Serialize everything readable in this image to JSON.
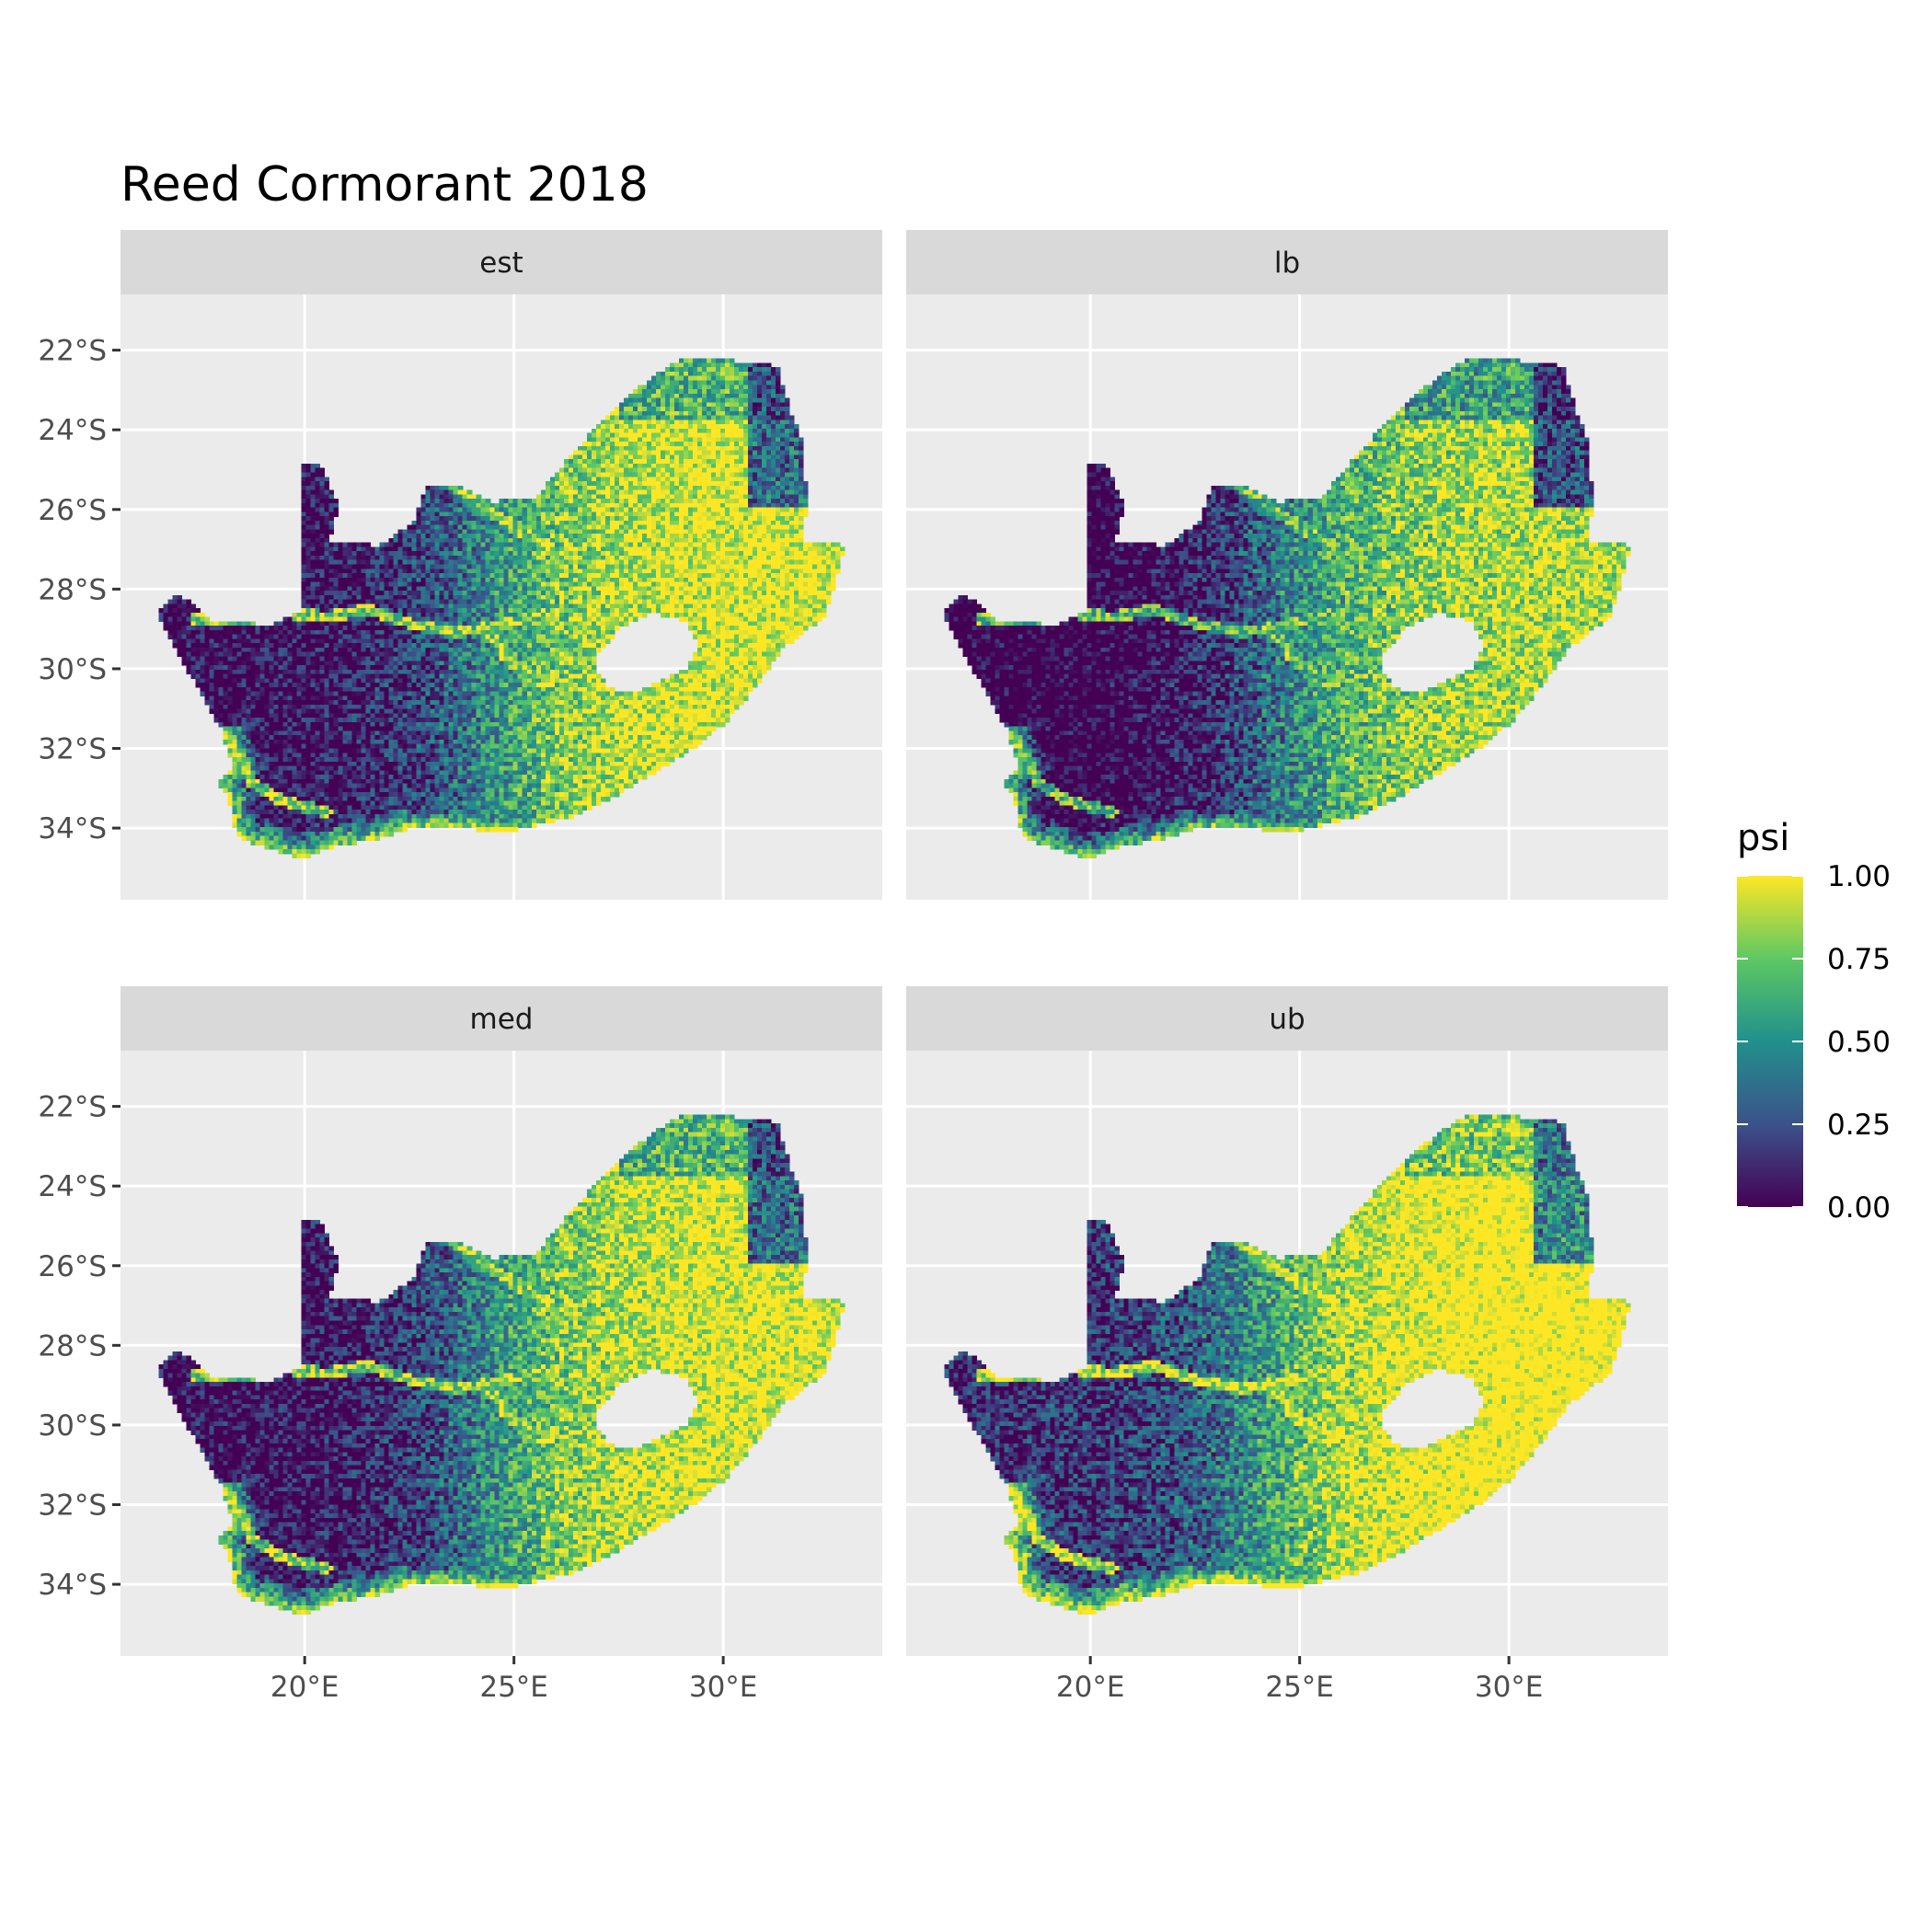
{
  "title": "Reed Cormorant 2018",
  "chart_data": {
    "type": "heatmap",
    "title": "Reed Cormorant 2018",
    "facets": [
      "est",
      "lb",
      "med",
      "ub"
    ],
    "x_ticks": [
      "20°E",
      "25°E",
      "30°E"
    ],
    "y_ticks": [
      "22°S",
      "24°S",
      "26°S",
      "28°S",
      "30°S",
      "32°S",
      "34°S"
    ],
    "x_tick_values": [
      20,
      25,
      30
    ],
    "y_tick_values": [
      -22,
      -24,
      -26,
      -28,
      -30,
      -32,
      -34
    ],
    "xlim": [
      15.6,
      33.8
    ],
    "ylim": [
      -35.8,
      -20.6
    ],
    "grid": true,
    "legend": {
      "title": "psi",
      "position": "right",
      "labels": [
        "1.00",
        "0.75",
        "0.50",
        "0.25",
        "0.00"
      ],
      "values": [
        1.0,
        0.75,
        0.5,
        0.25,
        0.0
      ],
      "range": [
        0,
        1
      ]
    },
    "facet_offsets": {
      "est": 0.0,
      "lb": -0.1,
      "med": 0.0,
      "ub": 0.12
    },
    "region_outline_lonlat": [
      [
        16.45,
        -28.6
      ],
      [
        16.9,
        -28.1
      ],
      [
        17.3,
        -28.3
      ],
      [
        17.8,
        -28.8
      ],
      [
        18.6,
        -28.85
      ],
      [
        19.2,
        -28.9
      ],
      [
        19.9,
        -28.55
      ],
      [
        19.95,
        -24.8
      ],
      [
        20.4,
        -24.9
      ],
      [
        20.8,
        -25.9
      ],
      [
        20.6,
        -26.8
      ],
      [
        21.8,
        -26.9
      ],
      [
        22.6,
        -26.3
      ],
      [
        22.9,
        -25.4
      ],
      [
        23.6,
        -25.4
      ],
      [
        24.5,
        -25.8
      ],
      [
        25.5,
        -25.7
      ],
      [
        26.3,
        -24.7
      ],
      [
        27.0,
        -23.9
      ],
      [
        28.0,
        -22.9
      ],
      [
        29.0,
        -22.2
      ],
      [
        29.8,
        -22.2
      ],
      [
        31.3,
        -22.4
      ],
      [
        31.6,
        -23.5
      ],
      [
        31.9,
        -24.3
      ],
      [
        32.0,
        -25.9
      ],
      [
        31.9,
        -26.8
      ],
      [
        32.9,
        -26.9
      ],
      [
        32.7,
        -27.8
      ],
      [
        32.4,
        -28.7
      ],
      [
        31.4,
        -29.5
      ],
      [
        30.8,
        -30.4
      ],
      [
        30.1,
        -31.3
      ],
      [
        29.4,
        -31.9
      ],
      [
        28.5,
        -32.5
      ],
      [
        27.4,
        -33.2
      ],
      [
        26.4,
        -33.7
      ],
      [
        25.6,
        -33.9
      ],
      [
        24.8,
        -34.1
      ],
      [
        23.6,
        -33.98
      ],
      [
        22.6,
        -33.98
      ],
      [
        21.6,
        -34.3
      ],
      [
        20.5,
        -34.5
      ],
      [
        20.0,
        -34.8
      ],
      [
        19.3,
        -34.55
      ],
      [
        18.5,
        -34.3
      ],
      [
        18.3,
        -33.9
      ],
      [
        18.2,
        -33.3
      ],
      [
        17.9,
        -32.8
      ],
      [
        18.3,
        -32.5
      ],
      [
        18.0,
        -31.5
      ],
      [
        17.4,
        -30.4
      ],
      [
        16.9,
        -29.5
      ]
    ],
    "lesotho_hole_lonlat": [
      [
        27.0,
        -29.6
      ],
      [
        27.6,
        -28.9
      ],
      [
        28.3,
        -28.6
      ],
      [
        29.1,
        -28.8
      ],
      [
        29.4,
        -29.4
      ],
      [
        29.1,
        -30.0
      ],
      [
        28.5,
        -30.3
      ],
      [
        27.9,
        -30.6
      ],
      [
        27.3,
        -30.5
      ],
      [
        27.0,
        -30.1
      ]
    ],
    "rivers_lonlat": [
      [
        [
          17.4,
          -28.75
        ],
        [
          18.5,
          -28.8
        ],
        [
          19.5,
          -28.6
        ],
        [
          20.6,
          -28.7
        ],
        [
          21.5,
          -28.5
        ],
        [
          22.6,
          -28.9
        ],
        [
          23.5,
          -29.1
        ],
        [
          24.3,
          -29.0
        ],
        [
          25.0,
          -28.8
        ],
        [
          26.0,
          -28.6
        ],
        [
          27.0,
          -28.0
        ],
        [
          28.2,
          -27.3
        ]
      ],
      [
        [
          24.3,
          -29.0
        ],
        [
          24.9,
          -29.8
        ],
        [
          25.6,
          -30.4
        ],
        [
          26.5,
          -30.6
        ]
      ],
      [
        [
          23.6,
          -25.4
        ],
        [
          24.8,
          -26.3
        ],
        [
          25.9,
          -27.1
        ],
        [
          26.6,
          -27.6
        ]
      ],
      [
        [
          18.3,
          -31.9
        ],
        [
          18.7,
          -32.8
        ],
        [
          19.4,
          -33.3
        ],
        [
          20.5,
          -33.6
        ]
      ],
      [
        [
          26.0,
          -24.1
        ],
        [
          27.1,
          -24.8
        ],
        [
          28.2,
          -25.2
        ],
        [
          29.5,
          -24.7
        ]
      ]
    ],
    "colorscale": [
      "#440154",
      "#3b528b",
      "#21908c",
      "#5dc863",
      "#fde725"
    ]
  }
}
